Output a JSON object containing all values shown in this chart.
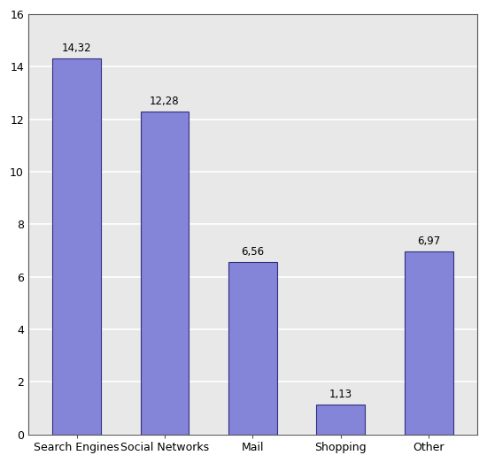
{
  "categories": [
    "Search Engines",
    "Social Networks",
    "Mail",
    "Shopping",
    "Other"
  ],
  "values": [
    14.32,
    12.28,
    6.56,
    1.13,
    6.97
  ],
  "bar_color": "#8484d8",
  "bar_edgecolor": "#303080",
  "background_color": "#e8e8e8",
  "plot_bg_color": "#e8e8e8",
  "outer_bg_color": "#ffffff",
  "ylim": [
    0,
    16
  ],
  "yticks": [
    0,
    2,
    4,
    6,
    8,
    10,
    12,
    14,
    16
  ],
  "label_fontsize": 8.5,
  "tick_fontsize": 9,
  "grid_color": "#ffffff",
  "bar_width": 0.55,
  "spine_color": "#555555"
}
